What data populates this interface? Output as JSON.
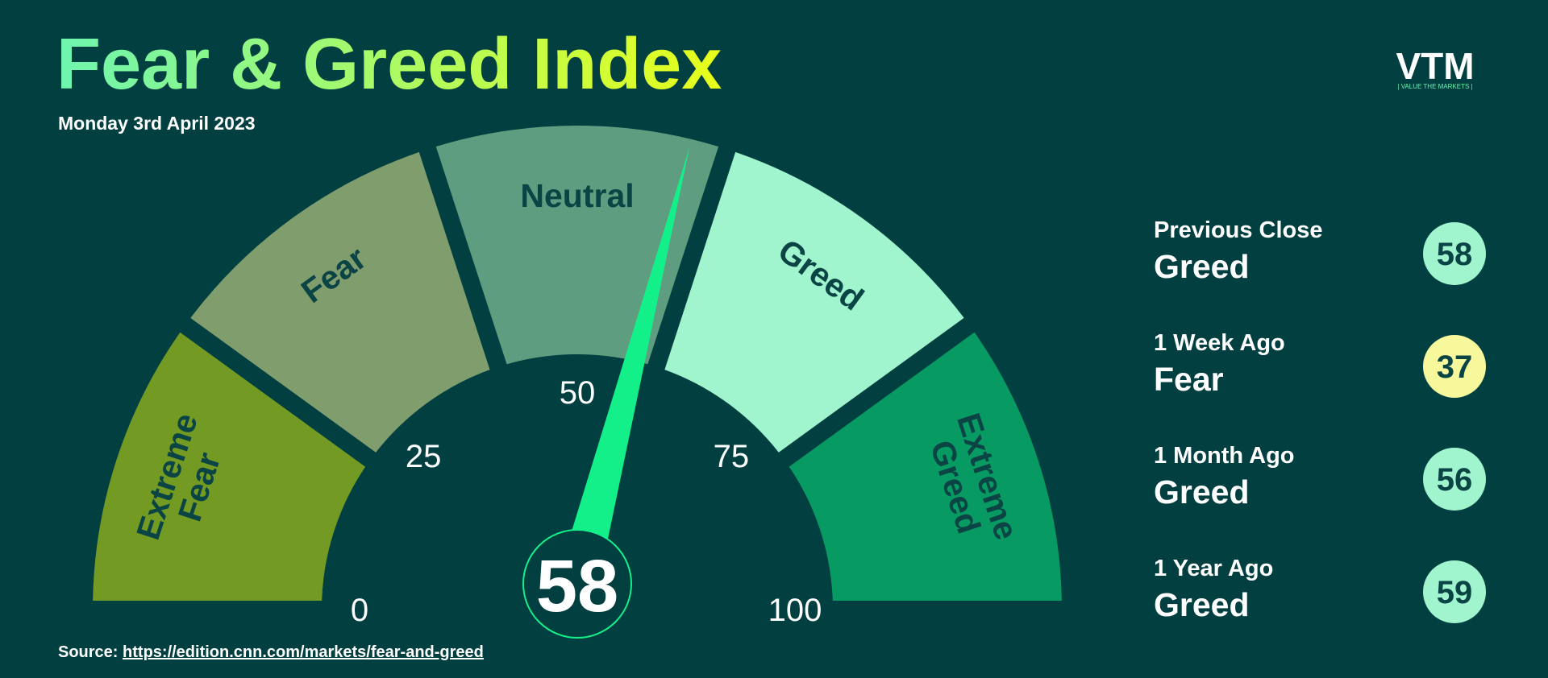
{
  "title": "Fear & Greed Index",
  "subtitle": "Monday 3rd April 2023",
  "logo": {
    "mark": "VTM",
    "tagline": "| VALUE THE MARKETS |"
  },
  "chart_data": {
    "type": "gauge",
    "value": 58,
    "range": [
      0,
      100
    ],
    "ticks": [
      0,
      25,
      50,
      75,
      100
    ],
    "needle_color": "#13f08a",
    "segments": [
      {
        "label": [
          "Extreme",
          "Fear"
        ],
        "color": "#739a22"
      },
      {
        "label": [
          "Fear"
        ],
        "color": "#7f9d6d"
      },
      {
        "label": [
          "Neutral"
        ],
        "color": "#5f9d80"
      },
      {
        "label": [
          "Greed"
        ],
        "color": "#a0f5cf"
      },
      {
        "label": [
          "Extreme",
          "Greed"
        ],
        "color": "#079a62"
      }
    ]
  },
  "history": [
    {
      "period": "Previous Close",
      "rating": "Greed",
      "value": 58,
      "color": "#a0f5cf"
    },
    {
      "period": "1 Week Ago",
      "rating": "Fear",
      "value": 37,
      "color": "#f7f79c"
    },
    {
      "period": "1 Month Ago",
      "rating": "Greed",
      "value": 56,
      "color": "#a0f5cf"
    },
    {
      "period": "1 Year Ago",
      "rating": "Greed",
      "value": 59,
      "color": "#a0f5cf"
    }
  ],
  "source": {
    "label": "Source:",
    "url": "https://edition.cnn.com/markets/fear-and-greed"
  }
}
